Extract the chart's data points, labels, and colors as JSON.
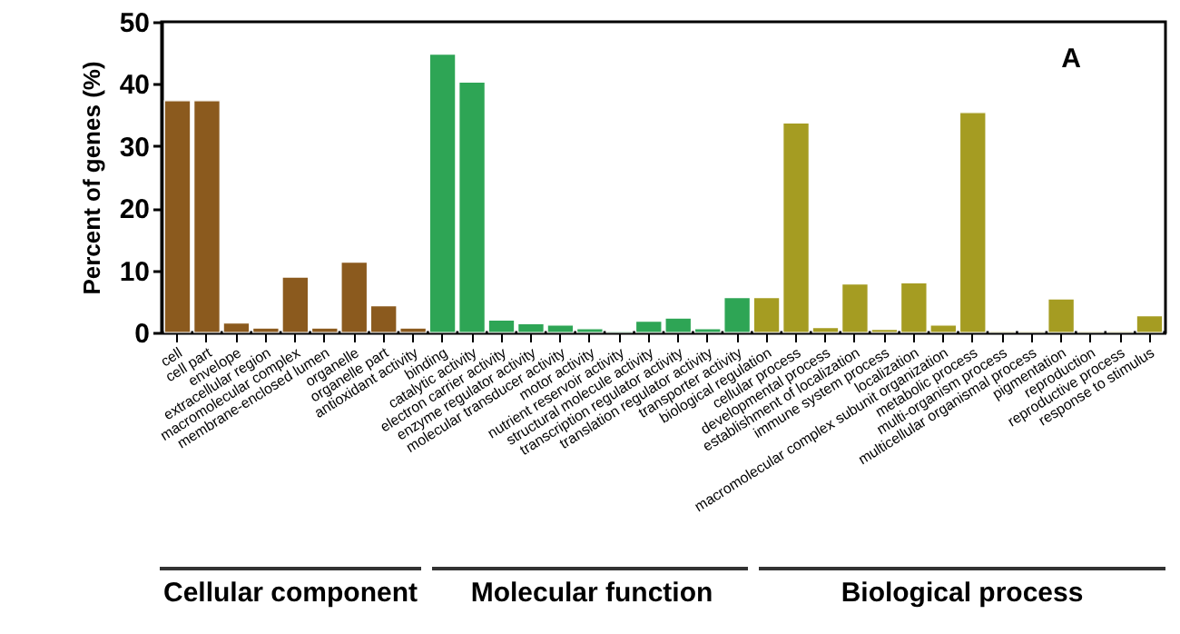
{
  "chart_data": {
    "type": "bar",
    "ylabel": "Percent of genes (%)",
    "categories": [
      "cell",
      "cell part",
      "envelope",
      "extracellular region",
      "macromolecular complex",
      "membrane-enclosed lumen",
      "organelle",
      "organelle part",
      "antioxidant activity",
      "binding",
      "catalytic activity",
      "electron carrier activity",
      "enzyme regulator activity",
      "molecular transducer activity",
      "motor activity",
      "nutrient reservoir activity",
      "structural molecule activity",
      "transcription regulator activity",
      "translation regulator activity",
      "transporter activity",
      "biological regulation",
      "cellular process",
      "developmental process",
      "establishment of localization",
      "immune system process",
      "localization",
      "macromolecular complex subunit organization",
      "metabolic process",
      "multi-organism process",
      "multicellular organismal process",
      "pigmentation",
      "reproduction",
      "reproductive process",
      "response to stimulus"
    ],
    "values": [
      37.3,
      37.3,
      1.5,
      0.7,
      8.9,
      0.7,
      11.3,
      4.3,
      0.7,
      44.8,
      40.3,
      2.0,
      1.4,
      1.2,
      0.6,
      0.2,
      1.8,
      2.3,
      0.6,
      5.6,
      5.6,
      33.7,
      0.8,
      7.8,
      0.5,
      8.0,
      1.2,
      35.4,
      0.2,
      0.2,
      5.4,
      0.2,
      0.2,
      2.7
    ],
    "colors": [
      "#8b5a1e",
      "#8b5a1e",
      "#8b5a1e",
      "#8b5a1e",
      "#8b5a1e",
      "#8b5a1e",
      "#8b5a1e",
      "#8b5a1e",
      "#8b5a1e",
      "#2ea555",
      "#2ea555",
      "#2ea555",
      "#2ea555",
      "#2ea555",
      "#2ea555",
      "#2ea555",
      "#2ea555",
      "#2ea555",
      "#2ea555",
      "#2ea555",
      "#a59c22",
      "#a59c22",
      "#a59c22",
      "#a59c22",
      "#a59c22",
      "#a59c22",
      "#a59c22",
      "#a59c22",
      "#a59c22",
      "#a59c22",
      "#a59c22",
      "#a59c22",
      "#a59c22",
      "#a59c22"
    ],
    "ylim": [
      0,
      50
    ],
    "yticks": [
      0,
      10,
      20,
      30,
      40,
      50
    ],
    "grid": false,
    "annotations": [
      "A",
      "Cellular component",
      "Molecular function",
      "Biological process"
    ]
  }
}
